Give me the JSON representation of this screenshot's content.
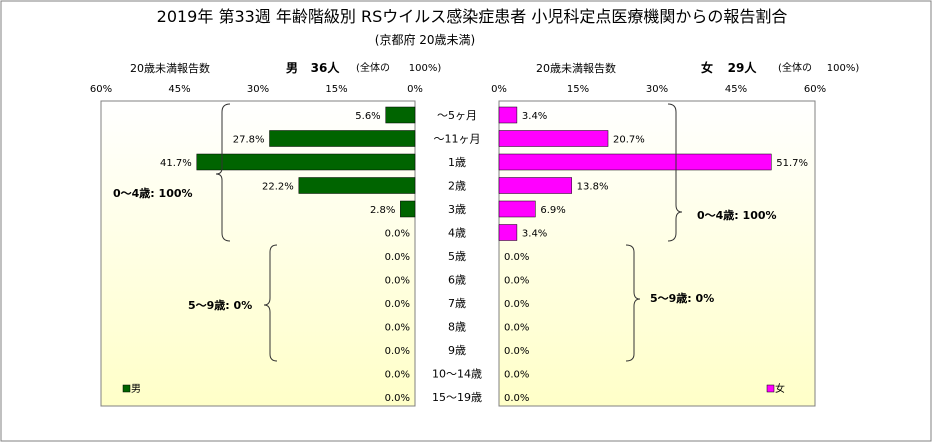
{
  "title": "2019年 第33週 年齢階級別 RSウイルス感染症患者 小児科定点医療機関からの報告割合",
  "subtitle": "(京都府 20歳未満)",
  "colors": {
    "male_bar": "#006400",
    "female_bar": "#ff00ff",
    "plot_bg_top": "#ffffff",
    "plot_bg_bottom": "#ffffc8"
  },
  "chart_data": {
    "type": "bar",
    "orientation": "horizontal-butterfly",
    "categories": [
      "〜5ヶ月",
      "〜11ヶ月",
      "1歳",
      "2歳",
      "3歳",
      "4歳",
      "5歳",
      "6歳",
      "7歳",
      "8歳",
      "9歳",
      "10〜14歳",
      "15〜19歳"
    ],
    "series": [
      {
        "name": "男",
        "values": [
          5.6,
          27.8,
          41.7,
          22.2,
          2.8,
          0.0,
          0.0,
          0.0,
          0.0,
          0.0,
          0.0,
          0.0,
          0.0
        ],
        "labels": [
          "5.6%",
          "27.8%",
          "41.7%",
          "22.2%",
          "2.8%",
          "0.0%",
          "0.0%",
          "0.0%",
          "0.0%",
          "0.0%",
          "0.0%",
          "0.0%",
          "0.0%"
        ]
      },
      {
        "name": "女",
        "values": [
          3.4,
          20.7,
          51.7,
          13.8,
          6.9,
          3.4,
          0.0,
          0.0,
          0.0,
          0.0,
          0.0,
          0.0,
          0.0
        ],
        "labels": [
          "3.4%",
          "20.7%",
          "51.7%",
          "13.8%",
          "6.9%",
          "3.4%",
          "0.0%",
          "0.0%",
          "0.0%",
          "0.0%",
          "0.0%",
          "0.0%",
          "0.0%"
        ]
      }
    ],
    "xlim": [
      0,
      60
    ],
    "ticks": [
      "0%",
      "15%",
      "30%",
      "45%",
      "60%"
    ],
    "ticks_left": [
      "60%",
      "45%",
      "30%",
      "15%",
      "0%"
    ],
    "left_panel": {
      "header_label": "20歳未満報告数",
      "sex": "男",
      "count": "36人",
      "total_note": "(全体の",
      "total_pct": "100%)"
    },
    "right_panel": {
      "header_label": "20歳未満報告数",
      "sex": "女",
      "count": "29人",
      "total_note": "(全体の",
      "total_pct": "100%)"
    },
    "annotations": {
      "male_0_4": "0〜4歳: 100%",
      "male_5_9": "5〜9歳: 0%",
      "female_0_4": "0〜4歳: 100%",
      "female_5_9": "5〜9歳: 0%"
    },
    "legend": {
      "male": "男",
      "female": "女",
      "placement": "bottom-left / bottom-right"
    },
    "grid": false
  }
}
